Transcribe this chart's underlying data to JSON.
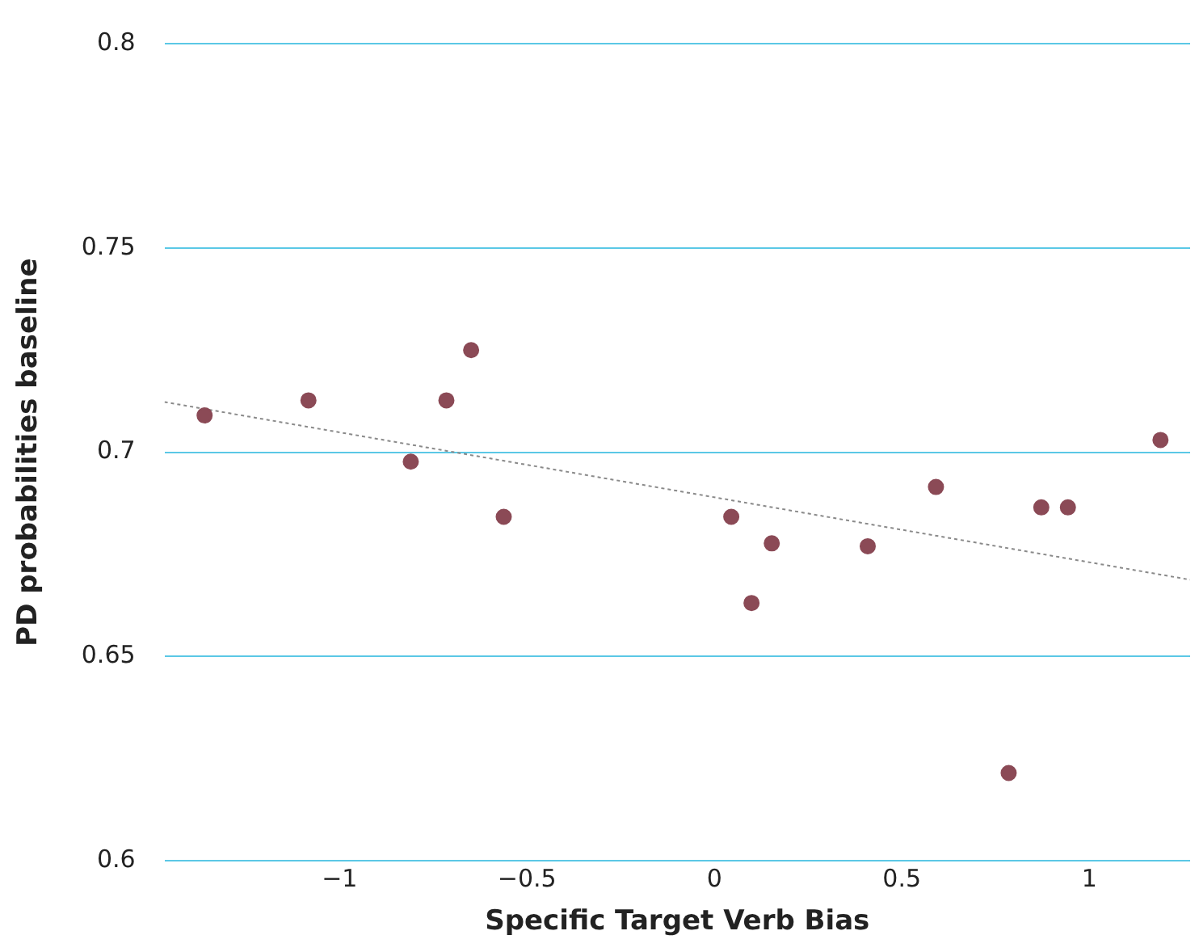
{
  "chart_data": {
    "type": "scatter",
    "xlabel": "Specific Target Verb Bias",
    "ylabel": "PD probabilities baseline",
    "xlim": [
      -1.467,
      1.269
    ],
    "xticks": [
      {
        "value": -1,
        "label": "−1"
      },
      {
        "value": -0.5,
        "label": "−0.5"
      },
      0,
      0.5,
      1
    ],
    "ylim": [
      0.6,
      0.8
    ],
    "yticks": [
      0.6,
      0.65,
      0.7,
      0.75,
      0.8
    ],
    "grid": "y",
    "legend": false,
    "marker": "circle",
    "series": [
      {
        "color": "#8b4a56",
        "x": [
          -1.36,
          -1.083,
          -0.81,
          -0.715,
          -0.649,
          -0.562,
          0.045,
          0.099,
          0.153,
          0.409,
          0.591,
          0.785,
          0.872,
          0.943,
          1.19
        ],
        "values": [
          0.709,
          0.7127,
          0.6977,
          0.7127,
          0.725,
          0.6842,
          0.6842,
          0.6631,
          0.6777,
          0.677,
          0.6915,
          0.6215,
          0.6865,
          0.6865,
          0.703
        ]
      },
      {
        "type": "line",
        "color": "#8a8a8a",
        "line_style": "dotted",
        "marker": "none",
        "x": [
          -1.467,
          1.269
        ],
        "values": [
          0.7123,
          0.6688
        ]
      }
    ]
  }
}
